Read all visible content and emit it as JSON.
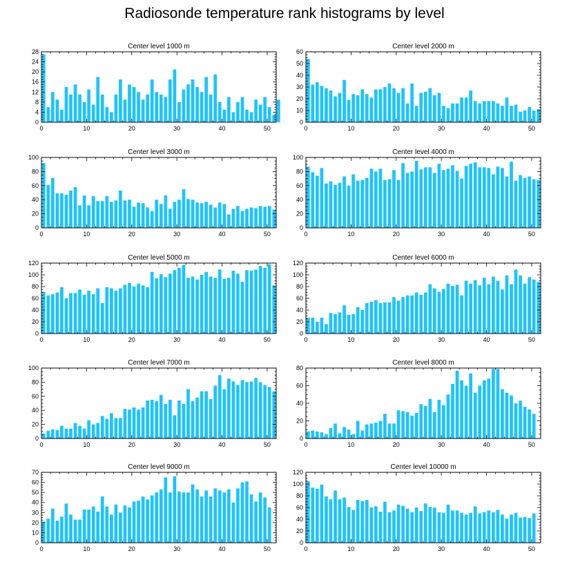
{
  "title": "Radiosonde temperature rank histograms by level",
  "colors": {
    "bar": "#1ec3ff",
    "axis": "#000000",
    "background": "#ffffff"
  },
  "chart_data": [
    {
      "type": "bar",
      "title": "Center level 1000 m",
      "xlim": [
        0,
        52
      ],
      "ylim": [
        0,
        28
      ],
      "yticks": [
        0,
        4,
        8,
        12,
        16,
        20,
        24,
        28
      ],
      "xticks": [
        0,
        10,
        20,
        30,
        40,
        50
      ],
      "values": [
        27,
        6,
        12,
        9,
        5,
        14,
        11,
        15,
        11,
        8,
        13,
        7,
        18,
        11,
        6,
        4,
        11,
        17,
        9,
        15,
        14,
        12,
        9,
        11,
        17,
        12,
        11,
        10,
        17,
        21,
        8,
        13,
        15,
        17,
        14,
        12,
        18,
        11,
        19,
        8,
        5,
        10,
        4,
        8,
        10,
        5,
        4,
        9,
        7,
        10,
        6,
        3,
        9
      ]
    },
    {
      "type": "bar",
      "title": "Center level 2000 m",
      "xlim": [
        0,
        52
      ],
      "ylim": [
        0,
        60
      ],
      "yticks": [
        0,
        10,
        20,
        30,
        40,
        50,
        60
      ],
      "xticks": [
        0,
        10,
        20,
        30,
        40,
        50
      ],
      "values": [
        54,
        32,
        34,
        31,
        29,
        27,
        22,
        25,
        36,
        19,
        24,
        23,
        28,
        24,
        21,
        28,
        28,
        30,
        33,
        29,
        25,
        29,
        16,
        33,
        14,
        25,
        26,
        29,
        23,
        25,
        14,
        12,
        16,
        16,
        21,
        21,
        27,
        18,
        16,
        18,
        18,
        18,
        16,
        14,
        21,
        14,
        15,
        9,
        10,
        13,
        10,
        11
      ]
    },
    {
      "type": "bar",
      "title": "Center level 3000 m",
      "xlim": [
        0,
        52
      ],
      "ylim": [
        0,
        100
      ],
      "yticks": [
        0,
        20,
        40,
        60,
        80,
        100
      ],
      "xticks": [
        0,
        10,
        20,
        30,
        40,
        50
      ],
      "values": [
        92,
        61,
        71,
        49,
        49,
        47,
        53,
        58,
        32,
        46,
        32,
        45,
        38,
        38,
        45,
        37,
        39,
        53,
        39,
        40,
        30,
        36,
        35,
        29,
        24,
        40,
        34,
        46,
        27,
        37,
        40,
        55,
        41,
        40,
        36,
        35,
        37,
        33,
        29,
        36,
        34,
        19,
        27,
        31,
        24,
        27,
        29,
        28,
        31,
        30,
        31,
        26
      ]
    },
    {
      "type": "bar",
      "title": "Center level 4000 m",
      "xlim": [
        0,
        52
      ],
      "ylim": [
        0,
        100
      ],
      "yticks": [
        0,
        20,
        40,
        60,
        80,
        100
      ],
      "xticks": [
        0,
        10,
        20,
        30,
        40,
        50
      ],
      "values": [
        87,
        79,
        74,
        85,
        63,
        66,
        61,
        64,
        73,
        60,
        76,
        67,
        68,
        71,
        84,
        80,
        84,
        68,
        69,
        82,
        68,
        92,
        78,
        80,
        95,
        83,
        86,
        86,
        78,
        91,
        82,
        84,
        89,
        81,
        70,
        88,
        91,
        93,
        86,
        86,
        85,
        76,
        87,
        85,
        73,
        94,
        67,
        75,
        71,
        73,
        69,
        68
      ]
    },
    {
      "type": "bar",
      "title": "Center level 5000 m",
      "xlim": [
        0,
        52
      ],
      "ylim": [
        0,
        120
      ],
      "yticks": [
        0,
        20,
        40,
        60,
        80,
        100,
        120
      ],
      "xticks": [
        0,
        10,
        20,
        30,
        40,
        50
      ],
      "values": [
        71,
        65,
        67,
        70,
        79,
        60,
        69,
        69,
        75,
        66,
        73,
        67,
        77,
        52,
        79,
        77,
        73,
        77,
        83,
        86,
        80,
        85,
        82,
        79,
        105,
        94,
        101,
        96,
        102,
        108,
        112,
        117,
        95,
        97,
        92,
        100,
        105,
        97,
        95,
        109,
        93,
        95,
        107,
        102,
        88,
        108,
        107,
        109,
        115,
        112,
        118,
        82
      ]
    },
    {
      "type": "bar",
      "title": "Center level 6000 m",
      "xlim": [
        0,
        52
      ],
      "ylim": [
        0,
        120
      ],
      "yticks": [
        0,
        20,
        40,
        60,
        80,
        100,
        120
      ],
      "xticks": [
        0,
        10,
        20,
        30,
        40,
        50
      ],
      "values": [
        27,
        27,
        20,
        27,
        16,
        35,
        33,
        36,
        48,
        32,
        33,
        45,
        40,
        52,
        54,
        57,
        52,
        53,
        53,
        62,
        56,
        62,
        65,
        65,
        70,
        66,
        70,
        84,
        77,
        71,
        76,
        85,
        81,
        83,
        65,
        90,
        85,
        91,
        82,
        95,
        84,
        97,
        90,
        75,
        99,
        84,
        109,
        99,
        85,
        96,
        92,
        88
      ]
    },
    {
      "type": "bar",
      "title": "Center level 7000 m",
      "xlim": [
        0,
        52
      ],
      "ylim": [
        0,
        100
      ],
      "yticks": [
        0,
        20,
        40,
        60,
        80,
        100
      ],
      "xticks": [
        0,
        10,
        20,
        30,
        40,
        50
      ],
      "values": [
        7,
        11,
        13,
        12,
        18,
        14,
        14,
        22,
        18,
        14,
        26,
        20,
        22,
        32,
        28,
        36,
        29,
        29,
        42,
        41,
        44,
        41,
        44,
        54,
        55,
        53,
        62,
        49,
        55,
        33,
        54,
        49,
        70,
        53,
        58,
        67,
        67,
        56,
        75,
        90,
        70,
        85,
        81,
        76,
        83,
        80,
        81,
        86,
        80,
        76,
        73,
        67
      ]
    },
    {
      "type": "bar",
      "title": "Center level 8000 m",
      "xlim": [
        0,
        52
      ],
      "ylim": [
        0,
        80
      ],
      "yticks": [
        0,
        20,
        40,
        60,
        80
      ],
      "xticks": [
        0,
        10,
        20,
        30,
        40,
        50
      ],
      "values": [
        8,
        9,
        8,
        7,
        5,
        12,
        17,
        6,
        13,
        10,
        5,
        20,
        9,
        16,
        17,
        18,
        20,
        28,
        17,
        17,
        32,
        31,
        30,
        26,
        29,
        39,
        37,
        45,
        30,
        44,
        38,
        50,
        62,
        77,
        66,
        60,
        74,
        52,
        60,
        66,
        68,
        79,
        79,
        56,
        52,
        49,
        40,
        43,
        36,
        33,
        28
      ]
    },
    {
      "type": "bar",
      "title": "Center level 9000 m",
      "xlim": [
        0,
        52
      ],
      "ylim": [
        0,
        70
      ],
      "yticks": [
        0,
        10,
        20,
        30,
        40,
        50,
        60,
        70
      ],
      "xticks": [
        0,
        10,
        20,
        30,
        40,
        50
      ],
      "values": [
        21,
        24,
        34,
        22,
        26,
        39,
        28,
        23,
        23,
        33,
        33,
        36,
        31,
        46,
        36,
        28,
        38,
        30,
        37,
        35,
        41,
        42,
        46,
        43,
        47,
        50,
        53,
        65,
        50,
        66,
        51,
        50,
        50,
        58,
        53,
        46,
        52,
        46,
        54,
        52,
        50,
        53,
        40,
        54,
        60,
        61,
        48,
        41,
        50,
        45,
        35
      ]
    },
    {
      "type": "bar",
      "title": "Center level 10000 m",
      "xlim": [
        0,
        52
      ],
      "ylim": [
        0,
        120
      ],
      "yticks": [
        0,
        20,
        40,
        60,
        80,
        100,
        120
      ],
      "xticks": [
        0,
        10,
        20,
        30,
        40,
        50
      ],
      "values": [
        105,
        94,
        92,
        99,
        79,
        74,
        89,
        74,
        77,
        61,
        56,
        73,
        71,
        73,
        60,
        62,
        53,
        70,
        52,
        55,
        65,
        63,
        58,
        52,
        60,
        54,
        67,
        61,
        60,
        52,
        51,
        65,
        55,
        55,
        51,
        48,
        51,
        62,
        50,
        52,
        55,
        52,
        56,
        48,
        41,
        48,
        51,
        43,
        44,
        42,
        50
      ]
    }
  ]
}
